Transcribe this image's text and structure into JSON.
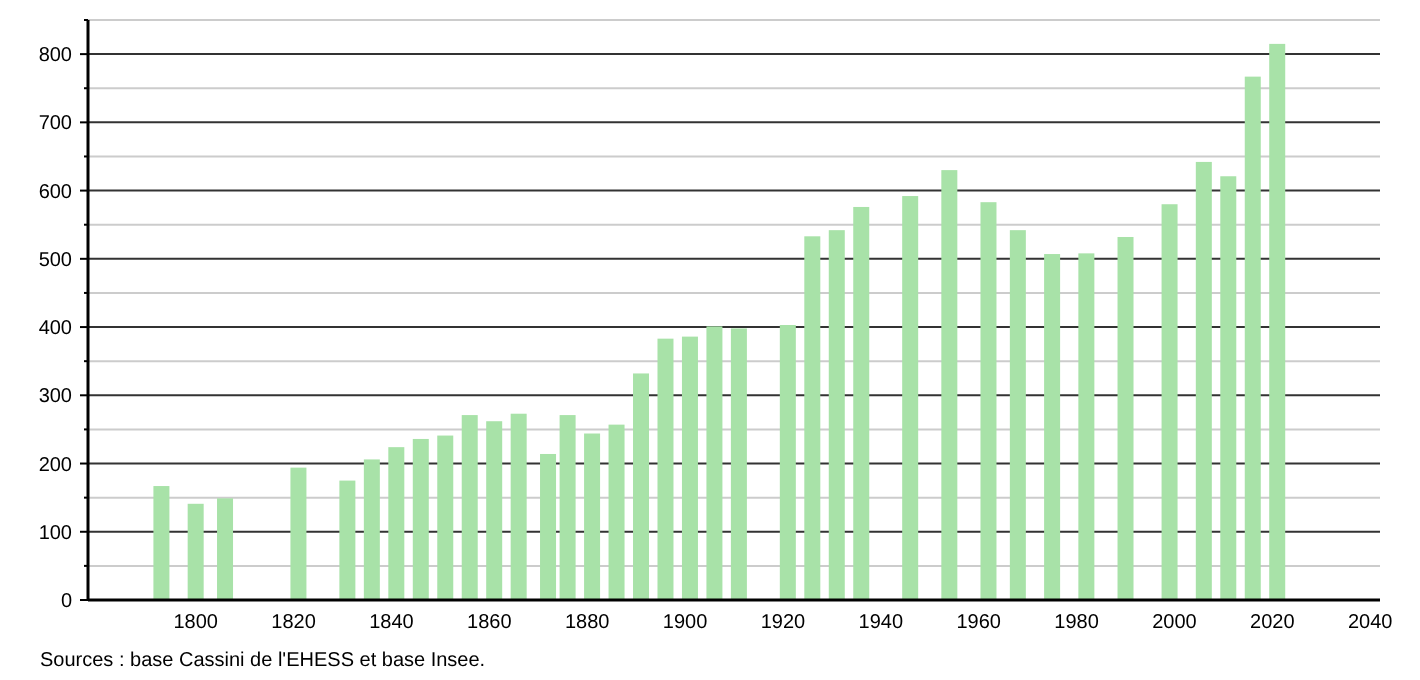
{
  "chart_data": {
    "type": "bar",
    "x": [
      1793,
      1800,
      1806,
      1821,
      1831,
      1836,
      1841,
      1846,
      1851,
      1856,
      1861,
      1866,
      1872,
      1876,
      1881,
      1886,
      1891,
      1896,
      1901,
      1906,
      1911,
      1921,
      1926,
      1931,
      1936,
      1946,
      1954,
      1962,
      1968,
      1975,
      1982,
      1990,
      1999,
      2006,
      2011,
      2016,
      2021
    ],
    "values": [
      167,
      141,
      149,
      194,
      175,
      206,
      224,
      236,
      241,
      271,
      262,
      273,
      214,
      271,
      244,
      257,
      332,
      383,
      386,
      401,
      398,
      403,
      533,
      542,
      576,
      592,
      630,
      583,
      542,
      507,
      508,
      532,
      580,
      642,
      621,
      767,
      815
    ],
    "color": "#a8e2a8",
    "xlim": [
      1778,
      2042
    ],
    "xticks": [
      1800,
      1820,
      1840,
      1860,
      1880,
      1900,
      1920,
      1940,
      1960,
      1980,
      2000,
      2020,
      2040
    ],
    "ylim": [
      0,
      850
    ],
    "yticks": [
      0,
      {
        "value": 50,
        "label": null
      },
      100,
      {
        "value": 150,
        "label": null
      },
      200,
      {
        "value": 250,
        "label": null
      },
      300,
      {
        "value": 350,
        "label": null
      },
      400,
      {
        "value": 450,
        "label": null
      },
      500,
      {
        "value": 550,
        "label": null
      },
      600,
      {
        "value": 650,
        "label": null
      },
      700,
      {
        "value": 750,
        "label": null
      },
      800,
      {
        "value": 850,
        "label": null
      }
    ],
    "grid": "y",
    "annotations": [
      "Sources : base Cassini de l'EHESS et base Insee."
    ]
  }
}
